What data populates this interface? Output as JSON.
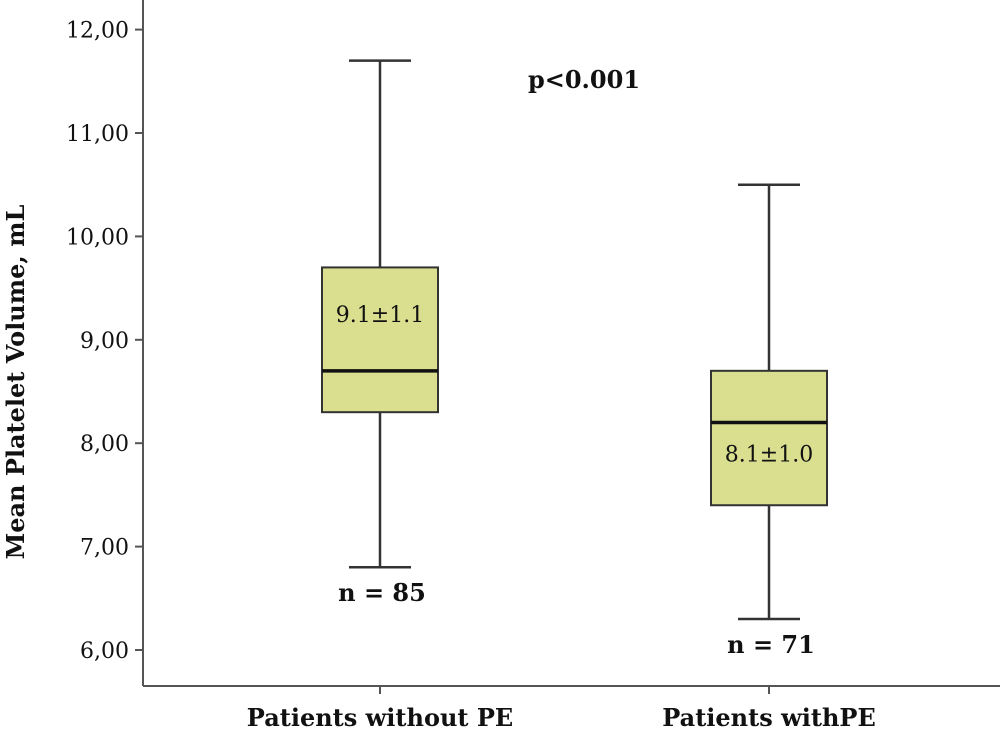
{
  "chart_data": {
    "type": "box",
    "ylabel": "Mean Platelet Volume, mL",
    "ylim": [
      5.7,
      12.3
    ],
    "yticks": [
      {
        "value": 6,
        "label": "6,00"
      },
      {
        "value": 7,
        "label": "7,00"
      },
      {
        "value": 8,
        "label": "8,00"
      },
      {
        "value": 9,
        "label": "9,00"
      },
      {
        "value": 10,
        "label": "10,00"
      },
      {
        "value": 11,
        "label": "11,00"
      },
      {
        "value": 12,
        "label": "12,00"
      }
    ],
    "grid": false,
    "categories": [
      "Patients without PE",
      "Patients withPE"
    ],
    "boxes": [
      {
        "whisker_low": 6.8,
        "q1": 8.3,
        "median": 8.7,
        "q3": 9.7,
        "whisker_high": 11.7,
        "stat_label": "9.1±1.1",
        "stat_label_y": 9.25,
        "n_label": "n = 85",
        "n_label_y": 6.55
      },
      {
        "whisker_low": 6.3,
        "q1": 7.4,
        "median": 8.2,
        "q3": 8.7,
        "whisker_high": 10.5,
        "stat_label": "8.1±1.0",
        "stat_label_y": 7.9,
        "n_label": "n = 71",
        "n_label_y": 6.05
      }
    ],
    "annotations": [
      {
        "text": "p<0.001",
        "position": "top-center"
      }
    ],
    "box_color": "#d9df8f"
  }
}
